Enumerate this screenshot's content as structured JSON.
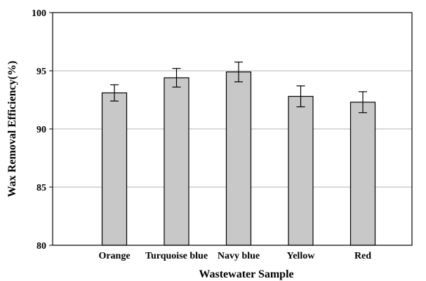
{
  "chart_data": {
    "type": "bar",
    "title": "",
    "xlabel": "Wastewater Sample",
    "ylabel": "Wax Removal Efficiency(%)",
    "categories": [
      "Orange",
      "Turquoise blue",
      "Navy blue",
      "Yellow",
      "Red"
    ],
    "values": [
      93.1,
      94.4,
      94.9,
      92.8,
      92.3
    ],
    "error": [
      0.7,
      0.8,
      0.85,
      0.9,
      0.9
    ],
    "ylim": [
      80,
      100
    ],
    "yticks": [
      80,
      85,
      90,
      95,
      100
    ],
    "grid": "horizontal",
    "legend": "none",
    "colors": {
      "bar_fill": "#c8c8c8",
      "bar_stroke": "#000000",
      "grid": "#b5b5b5",
      "axis": "#000000"
    }
  }
}
